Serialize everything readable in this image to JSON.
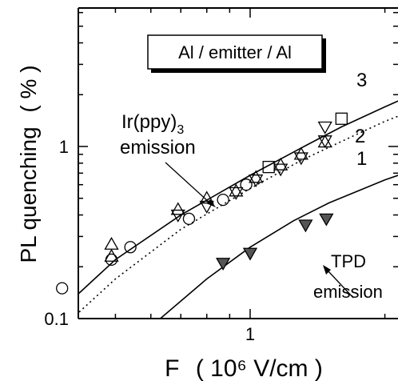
{
  "chart_data": {
    "type": "scatter",
    "title": "",
    "xlabel": "F",
    "xunit": "( 10⁶ V/cm )",
    "ylabel": "PL quenching",
    "yunit": "( % )",
    "x_scale": "log",
    "y_scale": "log",
    "xlim": [
      0.25,
      3.2
    ],
    "ylim": [
      0.1,
      5
    ],
    "x_ticks": [
      {
        "value": 1,
        "label": "1"
      }
    ],
    "y_ticks": [
      {
        "value": 0.1,
        "label": "0.1"
      },
      {
        "value": 1,
        "label": "1"
      }
    ],
    "grid": false,
    "legend_box": "Al / emitter / Al",
    "annotations": {
      "irppy_line1": "Ir(ppy)3",
      "irppy_line2": "emission",
      "tpd_line1": "TPD",
      "tpd_line2": "emission"
    },
    "curves": [
      {
        "label": "3",
        "style": "solid",
        "x": [
          0.36,
          0.5,
          0.7,
          1.0,
          1.3,
          1.6,
          2.0,
          2.5,
          3.2
        ],
        "y": [
          0.1,
          0.22,
          0.4,
          0.68,
          0.98,
          1.3,
          1.7,
          2.2,
          2.8
        ]
      },
      {
        "label": "2",
        "style": "dotted",
        "x": [
          0.4,
          0.5,
          0.7,
          1.0,
          1.3,
          1.6,
          2.0,
          2.5,
          3.2
        ],
        "y": [
          0.1,
          0.17,
          0.33,
          0.57,
          0.83,
          1.07,
          1.4,
          1.75,
          2.1
        ]
      },
      {
        "label": "1",
        "style": "solid",
        "x": [
          0.63,
          0.8,
          1.0,
          1.25,
          1.5,
          2.0,
          2.5,
          3.2
        ],
        "y": [
          0.1,
          0.17,
          0.26,
          0.37,
          0.47,
          0.64,
          0.78,
          0.9
        ]
      }
    ],
    "series": [
      {
        "marker": "circle-open",
        "points": [
          [
            0.38,
            0.15
          ],
          [
            0.49,
            0.22
          ],
          [
            0.54,
            0.26
          ],
          [
            0.73,
            0.38
          ],
          [
            0.87,
            0.49
          ],
          [
            0.98,
            0.6
          ]
        ]
      },
      {
        "marker": "triangle-up-open",
        "points": [
          [
            0.49,
            0.27
          ],
          [
            0.49,
            0.23
          ],
          [
            0.69,
            0.43
          ],
          [
            0.8,
            0.5
          ],
          [
            0.93,
            0.55
          ],
          [
            1.03,
            0.66
          ],
          [
            1.17,
            0.78
          ],
          [
            1.3,
            0.9
          ],
          [
            1.47,
            1.06
          ]
        ]
      },
      {
        "marker": "triangle-down-open",
        "points": [
          [
            0.69,
            0.4
          ],
          [
            0.8,
            0.45
          ],
          [
            0.93,
            0.54
          ],
          [
            1.03,
            0.64
          ],
          [
            1.17,
            0.74
          ],
          [
            1.3,
            0.86
          ],
          [
            1.47,
            1.3
          ],
          [
            1.47,
            1.08
          ]
        ]
      },
      {
        "marker": "square-open",
        "points": [
          [
            1.1,
            0.76
          ],
          [
            1.6,
            1.45
          ]
        ]
      },
      {
        "marker": "triangle-down-filled",
        "points": [
          [
            0.87,
            0.21
          ],
          [
            1.0,
            0.24
          ],
          [
            1.33,
            0.35
          ],
          [
            1.48,
            0.38
          ]
        ]
      }
    ]
  }
}
